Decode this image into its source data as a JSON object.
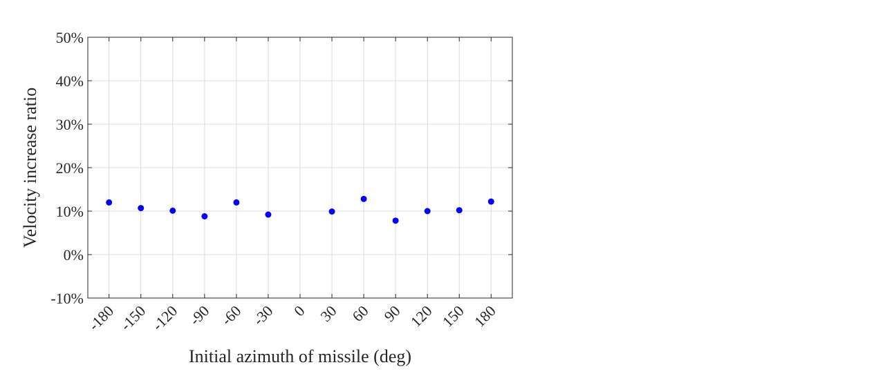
{
  "chart_data": {
    "type": "scatter",
    "title": "",
    "xlabel": "Initial azimuth of missile (deg)",
    "ylabel": "Velocity increase ratio",
    "x": [
      -180,
      -150,
      -120,
      -90,
      -60,
      -30,
      30,
      60,
      90,
      120,
      150,
      180
    ],
    "y": [
      0.12,
      0.107,
      0.101,
      0.088,
      0.12,
      0.092,
      0.099,
      0.128,
      0.078,
      0.1,
      0.102,
      0.122
    ],
    "xlim": [
      -200,
      200
    ],
    "ylim": [
      -0.1,
      0.5
    ],
    "xticks": [
      -180,
      -150,
      -120,
      -90,
      -60,
      -30,
      0,
      30,
      60,
      90,
      120,
      150,
      180
    ],
    "xtick_labels": [
      "-180",
      "-150",
      "-120",
      "-90",
      "-60",
      "-30",
      "0",
      "30",
      "60",
      "90",
      "120",
      "150",
      "180"
    ],
    "yticks": [
      -0.1,
      0,
      0.1,
      0.2,
      0.3,
      0.4,
      0.5
    ],
    "ytick_labels": [
      "-10%",
      "0%",
      "10%",
      "20%",
      "30%",
      "40%",
      "50%"
    ],
    "grid": true,
    "marker_color": "#0000ff",
    "grid_color": "#dcdcdc",
    "axis_color": "#262626"
  }
}
